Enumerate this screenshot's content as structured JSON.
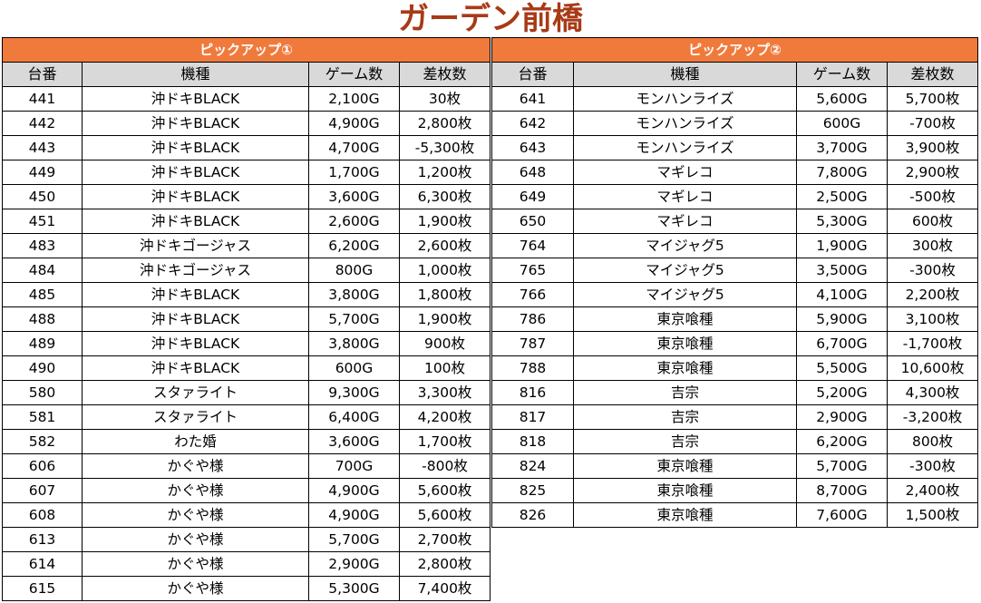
{
  "title": "ガーデン前橋",
  "columns": [
    "台番",
    "機種",
    "ゲーム数",
    "差枚数"
  ],
  "tables": [
    {
      "header": "ピックアップ①",
      "rows": [
        [
          "441",
          "沖ドキBLACK",
          "2,100G",
          "30枚"
        ],
        [
          "442",
          "沖ドキBLACK",
          "4,900G",
          "2,800枚"
        ],
        [
          "443",
          "沖ドキBLACK",
          "4,700G",
          "-5,300枚"
        ],
        [
          "449",
          "沖ドキBLACK",
          "1,700G",
          "1,200枚"
        ],
        [
          "450",
          "沖ドキBLACK",
          "3,600G",
          "6,300枚"
        ],
        [
          "451",
          "沖ドキBLACK",
          "2,600G",
          "1,900枚"
        ],
        [
          "483",
          "沖ドキゴージャス",
          "6,200G",
          "2,600枚"
        ],
        [
          "484",
          "沖ドキゴージャス",
          "800G",
          "1,000枚"
        ],
        [
          "485",
          "沖ドキBLACK",
          "3,800G",
          "1,800枚"
        ],
        [
          "488",
          "沖ドキBLACK",
          "5,700G",
          "1,900枚"
        ],
        [
          "489",
          "沖ドキBLACK",
          "3,800G",
          "900枚"
        ],
        [
          "490",
          "沖ドキBLACK",
          "600G",
          "100枚"
        ],
        [
          "580",
          "スタァライト",
          "9,300G",
          "3,300枚"
        ],
        [
          "581",
          "スタァライト",
          "6,400G",
          "4,200枚"
        ],
        [
          "582",
          "わた婚",
          "3,600G",
          "1,700枚"
        ],
        [
          "606",
          "かぐや様",
          "700G",
          "-800枚"
        ],
        [
          "607",
          "かぐや様",
          "4,900G",
          "5,600枚"
        ],
        [
          "608",
          "かぐや様",
          "4,900G",
          "5,600枚"
        ],
        [
          "613",
          "かぐや様",
          "5,700G",
          "2,700枚"
        ],
        [
          "614",
          "かぐや様",
          "2,900G",
          "2,800枚"
        ],
        [
          "615",
          "かぐや様",
          "5,300G",
          "7,400枚"
        ]
      ]
    },
    {
      "header": "ピックアップ②",
      "rows": [
        [
          "641",
          "モンハンライズ",
          "5,600G",
          "5,700枚"
        ],
        [
          "642",
          "モンハンライズ",
          "600G",
          "-700枚"
        ],
        [
          "643",
          "モンハンライズ",
          "3,700G",
          "3,900枚"
        ],
        [
          "648",
          "マギレコ",
          "7,800G",
          "2,900枚"
        ],
        [
          "649",
          "マギレコ",
          "2,500G",
          "-500枚"
        ],
        [
          "650",
          "マギレコ",
          "5,300G",
          "600枚"
        ],
        [
          "764",
          "マイジャグ5",
          "1,900G",
          "300枚"
        ],
        [
          "765",
          "マイジャグ5",
          "3,500G",
          "-300枚"
        ],
        [
          "766",
          "マイジャグ5",
          "4,100G",
          "2,200枚"
        ],
        [
          "786",
          "東京喰種",
          "5,900G",
          "3,100枚"
        ],
        [
          "787",
          "東京喰種",
          "6,700G",
          "-1,700枚"
        ],
        [
          "788",
          "東京喰種",
          "5,500G",
          "10,600枚"
        ],
        [
          "816",
          "吉宗",
          "5,200G",
          "4,300枚"
        ],
        [
          "817",
          "吉宗",
          "2,900G",
          "-3,200枚"
        ],
        [
          "818",
          "吉宗",
          "6,200G",
          "800枚"
        ],
        [
          "824",
          "東京喰種",
          "5,700G",
          "-300枚"
        ],
        [
          "825",
          "東京喰種",
          "8,700G",
          "2,400枚"
        ],
        [
          "826",
          "東京喰種",
          "7,600G",
          "1,500枚"
        ]
      ]
    }
  ]
}
